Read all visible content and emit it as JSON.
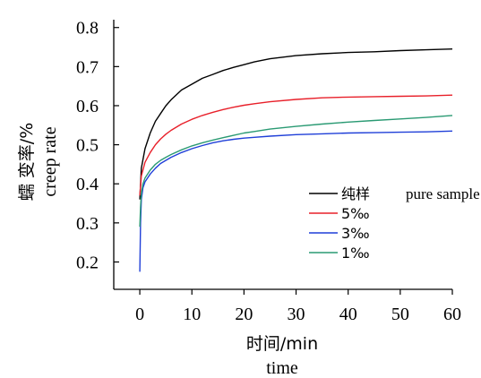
{
  "chart_data": {
    "type": "line",
    "xlabel": "时间/min",
    "xlabel_en": "time",
    "ylabel": "蠕 变率/%",
    "ylabel_en": "creep rate",
    "xlim": [
      -5,
      60
    ],
    "ylim": [
      0.13,
      0.82
    ],
    "x_ticks": [
      0,
      10,
      20,
      30,
      40,
      50,
      60
    ],
    "y_ticks": [
      0.2,
      0.3,
      0.4,
      0.5,
      0.6,
      0.7,
      0.8
    ],
    "y_tick_labels": [
      "0.2",
      "0.3",
      "0.4",
      "0.5",
      "0.6",
      "0.7",
      "0.8"
    ],
    "grid": false,
    "legend_position": "center-right",
    "series": [
      {
        "name": "纯样",
        "name_en": "pure sample",
        "color": "#000000",
        "x": [
          0,
          0.3,
          1,
          2,
          3,
          4,
          5,
          6,
          8,
          10,
          12,
          14,
          16,
          18,
          20,
          22,
          25,
          30,
          35,
          40,
          45,
          50,
          55,
          60
        ],
        "y": [
          0.36,
          0.44,
          0.49,
          0.53,
          0.56,
          0.58,
          0.6,
          0.615,
          0.64,
          0.655,
          0.67,
          0.68,
          0.69,
          0.698,
          0.705,
          0.712,
          0.72,
          0.728,
          0.733,
          0.736,
          0.738,
          0.741,
          0.743,
          0.745
        ]
      },
      {
        "name": "5‰",
        "color": "#e8202a",
        "x": [
          0,
          0.3,
          1,
          2,
          3,
          4,
          5,
          6,
          8,
          10,
          12,
          14,
          16,
          18,
          20,
          22,
          25,
          30,
          35,
          40,
          45,
          50,
          55,
          60
        ],
        "y": [
          0.37,
          0.42,
          0.455,
          0.48,
          0.5,
          0.515,
          0.527,
          0.537,
          0.553,
          0.565,
          0.575,
          0.583,
          0.59,
          0.596,
          0.601,
          0.605,
          0.61,
          0.616,
          0.62,
          0.622,
          0.623,
          0.624,
          0.625,
          0.627
        ]
      },
      {
        "name": "3‰",
        "color": "#1f3fd8",
        "x": [
          0,
          0.15,
          0.3,
          0.6,
          1,
          2,
          3,
          4,
          5,
          6,
          8,
          10,
          12,
          14,
          16,
          18,
          20,
          22,
          25,
          30,
          35,
          40,
          45,
          50,
          55,
          60
        ],
        "y": [
          0.175,
          0.3,
          0.36,
          0.39,
          0.405,
          0.425,
          0.44,
          0.452,
          0.46,
          0.468,
          0.48,
          0.49,
          0.498,
          0.505,
          0.51,
          0.514,
          0.517,
          0.519,
          0.522,
          0.526,
          0.528,
          0.53,
          0.531,
          0.532,
          0.533,
          0.535
        ]
      },
      {
        "name": "1‰",
        "color": "#2a9a73",
        "x": [
          0,
          0.15,
          0.3,
          0.6,
          1,
          2,
          3,
          4,
          5,
          6,
          8,
          10,
          12,
          14,
          16,
          18,
          20,
          22,
          25,
          30,
          35,
          40,
          45,
          50,
          55,
          60
        ],
        "y": [
          0.29,
          0.34,
          0.375,
          0.4,
          0.415,
          0.435,
          0.45,
          0.46,
          0.468,
          0.475,
          0.487,
          0.497,
          0.505,
          0.512,
          0.518,
          0.524,
          0.53,
          0.534,
          0.54,
          0.547,
          0.553,
          0.558,
          0.562,
          0.566,
          0.57,
          0.575
        ]
      }
    ]
  }
}
